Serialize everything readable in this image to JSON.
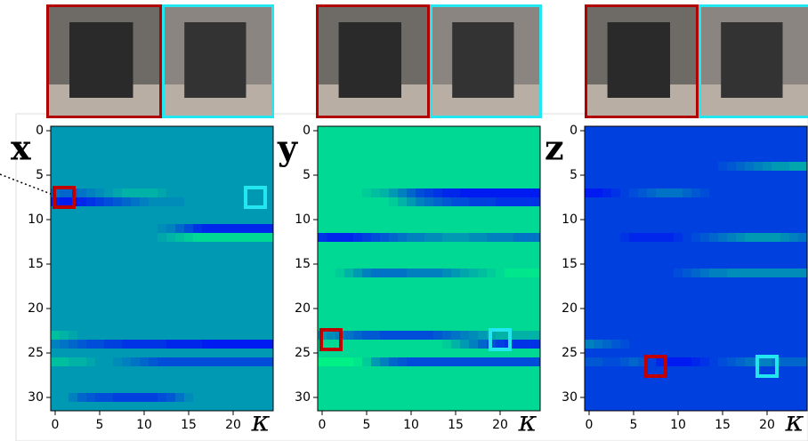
{
  "chart_data": [
    {
      "type": "heatmap",
      "ylabel": "x",
      "xlabel": "κ",
      "colormap": "winter",
      "xlim": [
        -0.5,
        24.5
      ],
      "ylim": [
        31.5,
        -0.5
      ],
      "xticks": [
        0,
        5,
        10,
        15,
        20
      ],
      "yticks": [
        0,
        5,
        10,
        15,
        20,
        25,
        30
      ],
      "base": 0.6,
      "rows": [
        {
          "row": 7,
          "values": [
            0.45,
            0.4,
            0.4,
            0.45,
            0.5,
            0.55,
            0.6,
            0.65,
            0.7,
            0.7,
            0.7,
            0.7,
            0.65,
            0.6,
            0.6,
            0.6,
            0.6,
            0.6,
            0.6,
            0.6,
            0.6,
            0.6,
            0.6,
            0.6,
            0.6
          ]
        },
        {
          "row": 8,
          "values": [
            0.15,
            0.1,
            0.1,
            0.15,
            0.2,
            0.25,
            0.3,
            0.35,
            0.4,
            0.45,
            0.5,
            0.55,
            0.55,
            0.55,
            0.55,
            0.6,
            0.6,
            0.6,
            0.6,
            0.6,
            0.6,
            0.6,
            0.6,
            0.6,
            0.6
          ]
        },
        {
          "row": 11,
          "values": [
            0.6,
            0.6,
            0.6,
            0.6,
            0.6,
            0.6,
            0.6,
            0.6,
            0.6,
            0.6,
            0.6,
            0.6,
            0.55,
            0.5,
            0.4,
            0.3,
            0.2,
            0.15,
            0.15,
            0.15,
            0.15,
            0.15,
            0.15,
            0.15,
            0.15
          ]
        },
        {
          "row": 12,
          "values": [
            0.6,
            0.6,
            0.6,
            0.6,
            0.6,
            0.6,
            0.6,
            0.6,
            0.6,
            0.6,
            0.6,
            0.6,
            0.65,
            0.7,
            0.75,
            0.8,
            0.85,
            0.85,
            0.85,
            0.85,
            0.85,
            0.85,
            0.85,
            0.85,
            0.85
          ]
        },
        {
          "row": 23,
          "values": [
            0.75,
            0.7,
            0.65,
            0.6,
            0.6,
            0.6,
            0.6,
            0.6,
            0.6,
            0.6,
            0.6,
            0.6,
            0.6,
            0.6,
            0.6,
            0.6,
            0.6,
            0.6,
            0.6,
            0.6,
            0.6,
            0.6,
            0.6,
            0.6,
            0.6
          ]
        },
        {
          "row": 24,
          "values": [
            0.5,
            0.45,
            0.4,
            0.35,
            0.3,
            0.3,
            0.25,
            0.25,
            0.2,
            0.2,
            0.2,
            0.2,
            0.2,
            0.15,
            0.15,
            0.15,
            0.15,
            0.1,
            0.1,
            0.1,
            0.1,
            0.1,
            0.1,
            0.1,
            0.1
          ]
        },
        {
          "row": 26,
          "values": [
            0.75,
            0.75,
            0.7,
            0.7,
            0.65,
            0.6,
            0.6,
            0.55,
            0.5,
            0.45,
            0.4,
            0.35,
            0.3,
            0.3,
            0.3,
            0.3,
            0.3,
            0.3,
            0.3,
            0.3,
            0.3,
            0.3,
            0.3,
            0.3,
            0.3
          ]
        },
        {
          "row": 30,
          "values": [
            0.6,
            0.6,
            0.5,
            0.4,
            0.35,
            0.3,
            0.3,
            0.25,
            0.25,
            0.25,
            0.25,
            0.25,
            0.3,
            0.35,
            0.45,
            0.55,
            0.6,
            0.6,
            0.6,
            0.6,
            0.6,
            0.6,
            0.6,
            0.6,
            0.6
          ]
        }
      ],
      "highlights": [
        {
          "x": 1,
          "y": 7.5,
          "color": "#c00000"
        },
        {
          "x": 22.5,
          "y": 7.5,
          "color": "#22e6f0"
        }
      ]
    },
    {
      "type": "heatmap",
      "ylabel": "y",
      "xlabel": "κ",
      "colormap": "winter",
      "xlim": [
        -0.5,
        24.5
      ],
      "ylim": [
        31.5,
        -0.5
      ],
      "xticks": [
        0,
        5,
        10,
        15,
        20
      ],
      "yticks": [
        0,
        5,
        10,
        15,
        20,
        25,
        30
      ],
      "base": 0.85,
      "rows": [
        {
          "row": 7,
          "values": [
            0.85,
            0.85,
            0.85,
            0.85,
            0.85,
            0.8,
            0.75,
            0.7,
            0.6,
            0.5,
            0.4,
            0.3,
            0.25,
            0.2,
            0.15,
            0.15,
            0.1,
            0.1,
            0.1,
            0.1,
            0.1,
            0.1,
            0.1,
            0.1,
            0.1
          ]
        },
        {
          "row": 8,
          "values": [
            0.85,
            0.85,
            0.85,
            0.85,
            0.85,
            0.85,
            0.85,
            0.85,
            0.8,
            0.7,
            0.6,
            0.5,
            0.45,
            0.4,
            0.35,
            0.3,
            0.3,
            0.25,
            0.25,
            0.25,
            0.2,
            0.2,
            0.2,
            0.2,
            0.2
          ]
        },
        {
          "row": 12,
          "values": [
            0.2,
            0.15,
            0.15,
            0.15,
            0.2,
            0.25,
            0.3,
            0.35,
            0.4,
            0.45,
            0.5,
            0.5,
            0.55,
            0.55,
            0.6,
            0.6,
            0.6,
            0.55,
            0.55,
            0.5,
            0.5,
            0.5,
            0.45,
            0.45,
            0.45
          ]
        },
        {
          "row": 16,
          "values": [
            0.85,
            0.85,
            0.8,
            0.7,
            0.6,
            0.5,
            0.45,
            0.45,
            0.45,
            0.45,
            0.5,
            0.5,
            0.5,
            0.5,
            0.55,
            0.6,
            0.65,
            0.7,
            0.75,
            0.8,
            0.85,
            0.9,
            0.9,
            0.9,
            0.9
          ]
        },
        {
          "row": 23,
          "values": [
            0.6,
            0.55,
            0.5,
            0.45,
            0.4,
            0.35,
            0.35,
            0.3,
            0.3,
            0.3,
            0.3,
            0.3,
            0.3,
            0.35,
            0.4,
            0.45,
            0.5,
            0.55,
            0.6,
            0.65,
            0.7,
            0.7,
            0.7,
            0.7,
            0.7
          ]
        },
        {
          "row": 24,
          "values": [
            0.85,
            0.85,
            0.85,
            0.85,
            0.85,
            0.85,
            0.85,
            0.85,
            0.85,
            0.85,
            0.85,
            0.85,
            0.85,
            0.85,
            0.8,
            0.7,
            0.6,
            0.5,
            0.4,
            0.3,
            0.25,
            0.2,
            0.2,
            0.2,
            0.2
          ]
        },
        {
          "row": 26,
          "values": [
            0.95,
            0.95,
            0.95,
            0.95,
            0.9,
            0.8,
            0.6,
            0.5,
            0.4,
            0.35,
            0.3,
            0.3,
            0.3,
            0.3,
            0.3,
            0.3,
            0.3,
            0.3,
            0.3,
            0.3,
            0.3,
            0.3,
            0.3,
            0.3,
            0.3
          ]
        }
      ],
      "highlights": [
        {
          "x": 1,
          "y": 23.5,
          "color": "#c00000"
        },
        {
          "x": 20,
          "y": 23.5,
          "color": "#22e6f0"
        }
      ]
    },
    {
      "type": "heatmap",
      "ylabel": "z",
      "xlabel": "κ",
      "colormap": "winter",
      "xlim": [
        -0.5,
        24.5
      ],
      "ylim": [
        31.5,
        -0.5
      ],
      "xticks": [
        0,
        5,
        10,
        15,
        20
      ],
      "yticks": [
        0,
        5,
        10,
        15,
        20,
        25,
        30
      ],
      "base": 0.25,
      "rows": [
        {
          "row": 4,
          "values": [
            0.25,
            0.25,
            0.25,
            0.25,
            0.25,
            0.25,
            0.25,
            0.25,
            0.25,
            0.25,
            0.25,
            0.25,
            0.25,
            0.25,
            0.25,
            0.3,
            0.35,
            0.4,
            0.45,
            0.5,
            0.55,
            0.6,
            0.6,
            0.65,
            0.65
          ]
        },
        {
          "row": 7,
          "values": [
            0.1,
            0.1,
            0.15,
            0.2,
            0.25,
            0.3,
            0.35,
            0.4,
            0.45,
            0.45,
            0.45,
            0.4,
            0.35,
            0.3,
            0.25,
            0.25,
            0.25,
            0.25,
            0.25,
            0.25,
            0.25,
            0.25,
            0.25,
            0.25,
            0.25
          ]
        },
        {
          "row": 12,
          "values": [
            0.25,
            0.25,
            0.25,
            0.25,
            0.2,
            0.15,
            0.15,
            0.15,
            0.15,
            0.15,
            0.2,
            0.25,
            0.3,
            0.35,
            0.4,
            0.45,
            0.5,
            0.55,
            0.6,
            0.6,
            0.6,
            0.6,
            0.55,
            0.5,
            0.45
          ]
        },
        {
          "row": 16,
          "values": [
            0.25,
            0.25,
            0.25,
            0.25,
            0.25,
            0.25,
            0.25,
            0.25,
            0.25,
            0.25,
            0.3,
            0.35,
            0.4,
            0.45,
            0.5,
            0.5,
            0.55,
            0.55,
            0.55,
            0.55,
            0.55,
            0.55,
            0.55,
            0.55,
            0.55
          ]
        },
        {
          "row": 24,
          "values": [
            0.5,
            0.45,
            0.4,
            0.35,
            0.3,
            0.25,
            0.25,
            0.25,
            0.25,
            0.25,
            0.25,
            0.25,
            0.25,
            0.25,
            0.25,
            0.25,
            0.25,
            0.25,
            0.25,
            0.25,
            0.25,
            0.25,
            0.25,
            0.25,
            0.25
          ]
        },
        {
          "row": 26,
          "values": [
            0.35,
            0.35,
            0.3,
            0.3,
            0.35,
            0.4,
            0.35,
            0.25,
            0.15,
            0.1,
            0.1,
            0.1,
            0.15,
            0.2,
            0.25,
            0.3,
            0.35,
            0.4,
            0.45,
            0.5,
            0.5,
            0.45,
            0.4,
            0.4,
            0.4
          ]
        }
      ],
      "highlights": [
        {
          "x": 7.5,
          "y": 26.5,
          "color": "#c00000"
        },
        {
          "x": 20,
          "y": 26.5,
          "color": "#22e6f0"
        }
      ]
    }
  ]
}
